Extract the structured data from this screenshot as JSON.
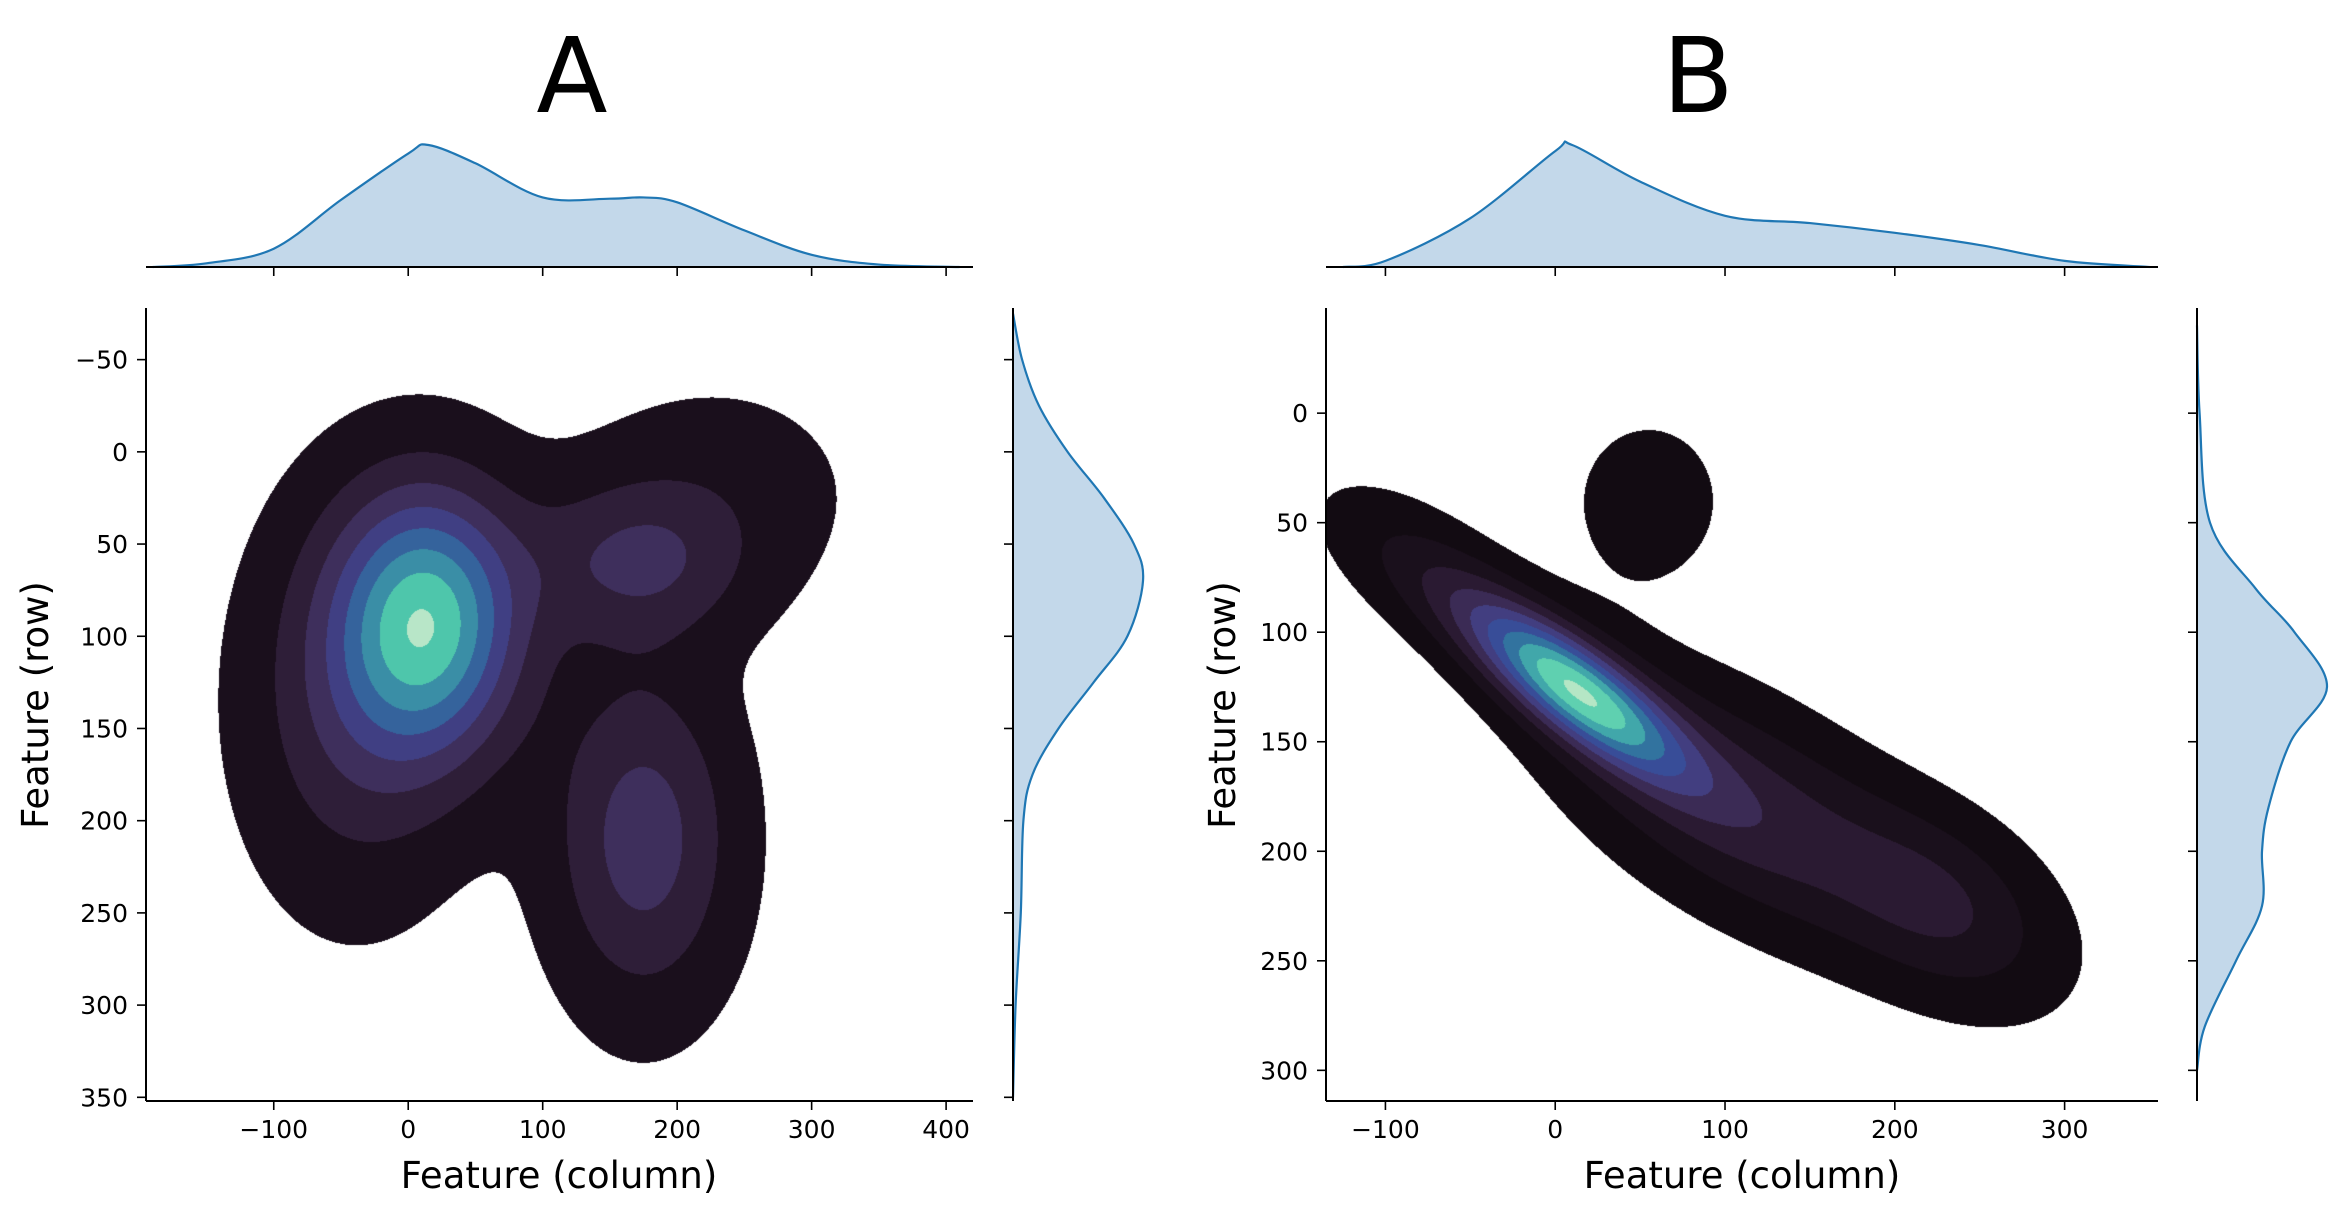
{
  "chart_data": [
    {
      "type": "kde-jointplot",
      "title": "A",
      "xlabel": "Feature (column)",
      "ylabel": "Feature (row)",
      "xlim": [
        -195,
        420
      ],
      "ylim": [
        352,
        -78
      ],
      "y_inverted": true,
      "xticks": [
        -100,
        0,
        100,
        200,
        300,
        400
      ],
      "xtick_labels": [
        "−100",
        "0",
        "100",
        "200",
        "300",
        "400"
      ],
      "yticks": [
        -50,
        0,
        50,
        100,
        150,
        200,
        250,
        300,
        350
      ],
      "ytick_labels": [
        "−50",
        "0",
        "50",
        "100",
        "150",
        "200",
        "250",
        "300",
        "350"
      ],
      "n_levels": 6,
      "colormap": [
        "#1a0f1c",
        "#2e1e38",
        "#3e2f5c",
        "#403f83",
        "#35639c",
        "#3a8ea6",
        "#4ec6ab",
        "#b8e6c8"
      ],
      "kde_components": [
        {
          "x": 15,
          "y": 92,
          "sx": 48,
          "sy": 50,
          "w": 1.0
        },
        {
          "x": 170,
          "y": 60,
          "sx": 55,
          "sy": 30,
          "w": 0.35
        },
        {
          "x": 175,
          "y": 210,
          "sx": 45,
          "sy": 60,
          "w": 0.45
        },
        {
          "x": -40,
          "y": 140,
          "sx": 55,
          "sy": 70,
          "w": 0.3
        },
        {
          "x": 230,
          "y": 20,
          "sx": 70,
          "sy": 40,
          "w": 0.12
        }
      ],
      "marginal_x": {
        "x": [
          -190,
          -150,
          -100,
          -50,
          0,
          15,
          50,
          100,
          150,
          175,
          200,
          250,
          300,
          350,
          410
        ],
        "density": [
          0.0,
          0.03,
          0.15,
          0.55,
          0.93,
          1.0,
          0.85,
          0.57,
          0.56,
          0.57,
          0.53,
          0.3,
          0.1,
          0.02,
          0.0
        ]
      },
      "marginal_y": {
        "y": [
          -75,
          -50,
          -25,
          0,
          25,
          50,
          70,
          100,
          125,
          150,
          175,
          200,
          250,
          300,
          350
        ],
        "density": [
          0.0,
          0.07,
          0.2,
          0.42,
          0.7,
          0.93,
          1.0,
          0.88,
          0.62,
          0.35,
          0.15,
          0.08,
          0.06,
          0.02,
          0.0
        ]
      },
      "marginal_color": "#1f77b4",
      "marginal_fill": "#c3d8ea"
    },
    {
      "type": "kde-jointplot",
      "title": "B",
      "xlabel": "Feature (column)",
      "ylabel": "Feature (row)",
      "xlim": [
        -135,
        355
      ],
      "ylim": [
        314,
        -48
      ],
      "y_inverted": true,
      "xticks": [
        -100,
        0,
        100,
        200,
        300
      ],
      "xtick_labels": [
        "−100",
        "0",
        "100",
        "200",
        "300"
      ],
      "yticks": [
        0,
        50,
        100,
        150,
        200,
        250,
        300
      ],
      "ytick_labels": [
        "0",
        "50",
        "100",
        "150",
        "200",
        "250",
        "300"
      ],
      "n_levels": 9,
      "colormap": [
        "#120b12",
        "#1a101c",
        "#2a1a32",
        "#3b2b55",
        "#423e80",
        "#384d98",
        "#32739f",
        "#41a7aa",
        "#5fd0b0",
        "#b5e6c5"
      ],
      "kde_components": [
        {
          "x": 10,
          "y": 125,
          "sx": 45,
          "sy": 28,
          "rho": 0.8,
          "w": 1.0
        },
        {
          "x": 110,
          "y": 180,
          "sx": 70,
          "sy": 40,
          "rho": 0.6,
          "w": 0.35
        },
        {
          "x": 230,
          "y": 225,
          "sx": 45,
          "sy": 30,
          "rho": 0.4,
          "w": 0.25
        },
        {
          "x": 55,
          "y": 40,
          "sx": 35,
          "sy": 30,
          "rho": 0.0,
          "w": 0.1
        },
        {
          "x": -80,
          "y": 70,
          "sx": 40,
          "sy": 25,
          "rho": 0.6,
          "w": 0.15
        }
      ],
      "marginal_x": {
        "x": [
          -125,
          -100,
          -50,
          0,
          10,
          50,
          100,
          150,
          200,
          250,
          300,
          350
        ],
        "density": [
          0.0,
          0.05,
          0.4,
          0.95,
          1.0,
          0.7,
          0.42,
          0.36,
          0.28,
          0.18,
          0.05,
          0.0
        ]
      },
      "marginal_y": {
        "y": [
          -40,
          0,
          50,
          80,
          100,
          125,
          150,
          180,
          200,
          225,
          250,
          280,
          300
        ],
        "density": [
          0.0,
          0.02,
          0.1,
          0.45,
          0.75,
          1.0,
          0.72,
          0.55,
          0.5,
          0.5,
          0.3,
          0.06,
          0.0
        ]
      },
      "marginal_color": "#1f77b4",
      "marginal_fill": "#c3d8ea"
    }
  ]
}
